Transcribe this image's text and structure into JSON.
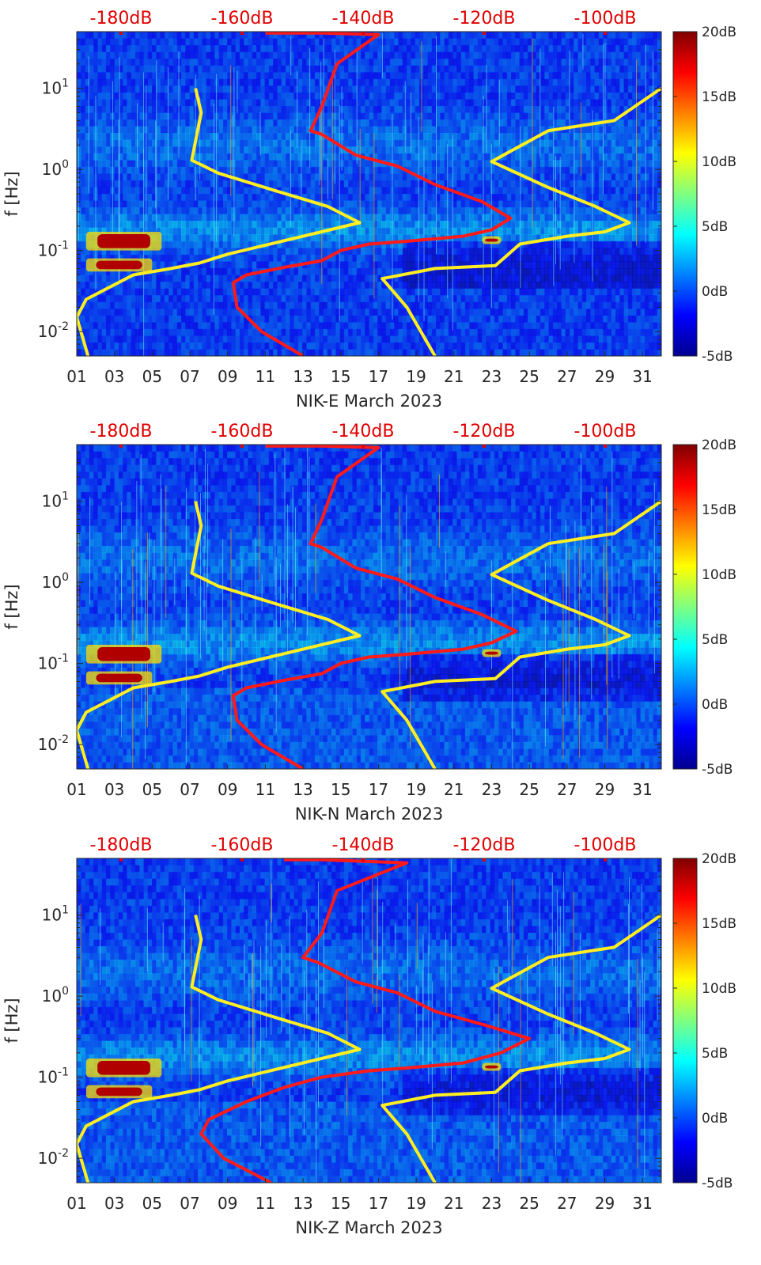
{
  "chart_data": [
    {
      "type": "heatmap",
      "title": "",
      "xlabel": "NIK-E March 2023",
      "ylabel": "f [Hz]",
      "x_ticks": [
        "01",
        "03",
        "05",
        "07",
        "09",
        "11",
        "13",
        "15",
        "17",
        "19",
        "21",
        "23",
        "25",
        "27",
        "29",
        "31"
      ],
      "y_ticks": [
        "10^-2",
        "10^-1",
        "10^0",
        "10^1"
      ],
      "xlim": [
        1,
        32
      ],
      "ylim": [
        0.005,
        50
      ],
      "y_scale": "log",
      "colorbar": {
        "ticks": [
          "20dB",
          "15dB",
          "10dB",
          "5dB",
          "0dB",
          "-5dB"
        ],
        "range": [
          -5,
          20
        ],
        "colormap": "jet"
      },
      "top_axis": {
        "ticks": [
          "-180dB",
          "-160dB",
          "-140dB",
          "-120dB",
          "-100dB"
        ],
        "color": "#e00000"
      },
      "hotspots": [
        {
          "x0": 1.5,
          "x1": 5.5,
          "f0": 0.1,
          "f1": 0.17,
          "level": "high"
        },
        {
          "x0": 1.5,
          "x1": 5,
          "f0": 0.055,
          "f1": 0.08,
          "level": "high"
        },
        {
          "x0": 22.5,
          "x1": 23.5,
          "f0": 0.12,
          "f1": 0.15,
          "level": "high"
        }
      ],
      "series": [
        {
          "color": "#ff1a1a",
          "points": [
            [
              11,
              48
            ],
            [
              14,
              48
            ],
            [
              17,
              46
            ],
            [
              14.8,
              20
            ],
            [
              14,
              6
            ],
            [
              13.4,
              3
            ],
            [
              14,
              2.7
            ],
            [
              15.8,
              1.5
            ],
            [
              18,
              1.1
            ],
            [
              20,
              0.65
            ],
            [
              22.5,
              0.4
            ],
            [
              24,
              0.25
            ],
            [
              23,
              0.18
            ],
            [
              21.5,
              0.15
            ],
            [
              18.5,
              0.13
            ],
            [
              16.5,
              0.12
            ],
            [
              15,
              0.1
            ],
            [
              14,
              0.075
            ],
            [
              12,
              0.062
            ],
            [
              10,
              0.05
            ],
            [
              9.3,
              0.04
            ],
            [
              9.5,
              0.02
            ],
            [
              10.8,
              0.01
            ],
            [
              13,
              0.005
            ]
          ]
        },
        {
          "color": "#ffee22",
          "points": [
            [
              7.3,
              10
            ],
            [
              7.6,
              5
            ],
            [
              7.1,
              1.3
            ],
            [
              8.5,
              0.9
            ],
            [
              11.5,
              0.55
            ],
            [
              14.3,
              0.35
            ],
            [
              16,
              0.22
            ],
            [
              13,
              0.15
            ],
            [
              9,
              0.09
            ],
            [
              7.5,
              0.07
            ],
            [
              6,
              0.06
            ],
            [
              4,
              0.05
            ],
            [
              1.5,
              0.025
            ],
            [
              1,
              0.015
            ],
            [
              1.6,
              0.005
            ]
          ]
        },
        {
          "color": "#ffee22",
          "points": [
            [
              7.3,
              10
            ],
            [
              7.6,
              5
            ],
            [
              7.1,
              1.3
            ],
            [
              8.5,
              0.9
            ],
            [
              11.5,
              0.55
            ],
            [
              14.3,
              0.35
            ],
            [
              16,
              0.22
            ],
            [
              13,
              0.15
            ],
            [
              9,
              0.09
            ],
            [
              7.5,
              0.07
            ],
            [
              6,
              0.06
            ],
            [
              4,
              0.05
            ],
            [
              1.5,
              0.025
            ],
            [
              1,
              0.015
            ],
            [
              1.6,
              0.005
            ]
          ],
          "offset_db": 80,
          "dupe_of": "left"
        },
        {
          "color": "#ffee22",
          "points": [
            [
              32,
              10
            ],
            [
              29.5,
              4
            ],
            [
              26,
              3
            ],
            [
              23,
              1.25
            ],
            [
              26,
              0.6
            ],
            [
              28.5,
              0.35
            ],
            [
              30.3,
              0.22
            ],
            [
              29,
              0.17
            ],
            [
              27,
              0.15
            ],
            [
              24.5,
              0.12
            ],
            [
              23.2,
              0.065
            ],
            [
              20,
              0.06
            ],
            [
              17.2,
              0.045
            ],
            [
              18.5,
              0.02
            ],
            [
              20,
              0.005
            ]
          ]
        }
      ]
    },
    {
      "type": "heatmap",
      "title": "",
      "xlabel": "NIK-N March 2023",
      "ylabel": "f [Hz]",
      "x_ticks": [
        "01",
        "03",
        "05",
        "07",
        "09",
        "11",
        "13",
        "15",
        "17",
        "19",
        "21",
        "23",
        "25",
        "27",
        "29",
        "31"
      ],
      "y_ticks": [
        "10^-2",
        "10^-1",
        "10^0",
        "10^1"
      ],
      "xlim": [
        1,
        32
      ],
      "ylim": [
        0.005,
        50
      ],
      "y_scale": "log",
      "colorbar": {
        "ticks": [
          "20dB",
          "15dB",
          "10dB",
          "5dB",
          "0dB",
          "-5dB"
        ],
        "range": [
          -5,
          20
        ],
        "colormap": "jet"
      },
      "top_axis": {
        "ticks": [
          "-180dB",
          "-160dB",
          "-140dB",
          "-120dB",
          "-100dB"
        ],
        "color": "#e00000"
      },
      "hotspots": [
        {
          "x0": 1.5,
          "x1": 5.5,
          "f0": 0.1,
          "f1": 0.17,
          "level": "high"
        },
        {
          "x0": 1.5,
          "x1": 5,
          "f0": 0.055,
          "f1": 0.08,
          "level": "high"
        },
        {
          "x0": 22.5,
          "x1": 23.5,
          "f0": 0.12,
          "f1": 0.15,
          "level": "high"
        }
      ],
      "series": [
        {
          "color": "#ff1a1a",
          "points": [
            [
              11,
              48
            ],
            [
              14,
              48
            ],
            [
              17,
              46
            ],
            [
              14.8,
              20
            ],
            [
              14,
              6
            ],
            [
              13.4,
              3
            ],
            [
              14,
              2.7
            ],
            [
              15.8,
              1.5
            ],
            [
              18,
              1.1
            ],
            [
              20,
              0.65
            ],
            [
              22.5,
              0.4
            ],
            [
              24.3,
              0.25
            ],
            [
              23,
              0.18
            ],
            [
              21.5,
              0.15
            ],
            [
              18.5,
              0.13
            ],
            [
              16.5,
              0.12
            ],
            [
              15,
              0.1
            ],
            [
              14,
              0.075
            ],
            [
              12,
              0.062
            ],
            [
              10,
              0.05
            ],
            [
              9.3,
              0.04
            ],
            [
              9.5,
              0.02
            ],
            [
              10.8,
              0.01
            ],
            [
              13,
              0.005
            ]
          ]
        },
        {
          "color": "#ffee22",
          "points": [
            [
              7.3,
              10
            ],
            [
              7.6,
              5
            ],
            [
              7.1,
              1.3
            ],
            [
              8.5,
              0.9
            ],
            [
              11.5,
              0.55
            ],
            [
              14.3,
              0.35
            ],
            [
              16,
              0.22
            ],
            [
              13,
              0.15
            ],
            [
              9,
              0.09
            ],
            [
              7.5,
              0.07
            ],
            [
              6,
              0.06
            ],
            [
              4,
              0.05
            ],
            [
              1.5,
              0.025
            ],
            [
              1,
              0.015
            ],
            [
              1.6,
              0.005
            ]
          ]
        },
        {
          "color": "#ffee22",
          "points": [
            [
              32,
              10
            ],
            [
              29.5,
              4
            ],
            [
              26,
              3
            ],
            [
              23,
              1.25
            ],
            [
              26,
              0.6
            ],
            [
              28.5,
              0.35
            ],
            [
              30.3,
              0.22
            ],
            [
              29,
              0.17
            ],
            [
              27,
              0.15
            ],
            [
              24.5,
              0.12
            ],
            [
              23.2,
              0.065
            ],
            [
              20,
              0.06
            ],
            [
              17.2,
              0.045
            ],
            [
              18.5,
              0.02
            ],
            [
              20,
              0.005
            ]
          ]
        }
      ]
    },
    {
      "type": "heatmap",
      "title": "",
      "xlabel": "NIK-Z March 2023",
      "ylabel": "f [Hz]",
      "x_ticks": [
        "01",
        "03",
        "05",
        "07",
        "09",
        "11",
        "13",
        "15",
        "17",
        "19",
        "21",
        "23",
        "25",
        "27",
        "29",
        "31"
      ],
      "y_ticks": [
        "10^-2",
        "10^-1",
        "10^0",
        "10^1"
      ],
      "xlim": [
        1,
        32
      ],
      "ylim": [
        0.005,
        50
      ],
      "y_scale": "log",
      "colorbar": {
        "ticks": [
          "20dB",
          "15dB",
          "10dB",
          "5dB",
          "0dB",
          "-5dB"
        ],
        "range": [
          -5,
          20
        ],
        "colormap": "jet"
      },
      "top_axis": {
        "ticks": [
          "-180dB",
          "-160dB",
          "-140dB",
          "-120dB",
          "-100dB"
        ],
        "color": "#e00000"
      },
      "hotspots": [
        {
          "x0": 1.5,
          "x1": 5.5,
          "f0": 0.1,
          "f1": 0.17,
          "level": "high"
        },
        {
          "x0": 1.5,
          "x1": 5,
          "f0": 0.055,
          "f1": 0.08,
          "level": "high"
        },
        {
          "x0": 22.5,
          "x1": 23.5,
          "f0": 0.12,
          "f1": 0.15,
          "level": "high"
        }
      ],
      "series": [
        {
          "color": "#ff1a1a",
          "points": [
            [
              12,
              48
            ],
            [
              14,
              48
            ],
            [
              18.5,
              44
            ],
            [
              14.8,
              20
            ],
            [
              14,
              6
            ],
            [
              13,
              3
            ],
            [
              13.8,
              2.6
            ],
            [
              15.8,
              1.5
            ],
            [
              18,
              1.1
            ],
            [
              20,
              0.65
            ],
            [
              22.5,
              0.45
            ],
            [
              25,
              0.3
            ],
            [
              23.5,
              0.2
            ],
            [
              21.5,
              0.15
            ],
            [
              18.5,
              0.13
            ],
            [
              16.5,
              0.12
            ],
            [
              14,
              0.1
            ],
            [
              12,
              0.075
            ],
            [
              10,
              0.05
            ],
            [
              8,
              0.03
            ],
            [
              7.6,
              0.02
            ],
            [
              8.8,
              0.01
            ],
            [
              11.3,
              0.005
            ]
          ]
        },
        {
          "color": "#ffee22",
          "points": [
            [
              7.3,
              10
            ],
            [
              7.6,
              5
            ],
            [
              7.1,
              1.3
            ],
            [
              8.5,
              0.9
            ],
            [
              11.5,
              0.55
            ],
            [
              14.3,
              0.35
            ],
            [
              16,
              0.22
            ],
            [
              13,
              0.15
            ],
            [
              9,
              0.09
            ],
            [
              7.5,
              0.07
            ],
            [
              6,
              0.06
            ],
            [
              4,
              0.05
            ],
            [
              1.5,
              0.025
            ],
            [
              1,
              0.015
            ],
            [
              1.6,
              0.005
            ]
          ]
        },
        {
          "color": "#ffee22",
          "points": [
            [
              32,
              10
            ],
            [
              29.5,
              4
            ],
            [
              26,
              3
            ],
            [
              23,
              1.25
            ],
            [
              26,
              0.6
            ],
            [
              28.5,
              0.35
            ],
            [
              30.3,
              0.22
            ],
            [
              29,
              0.17
            ],
            [
              27,
              0.15
            ],
            [
              24.5,
              0.12
            ],
            [
              23.2,
              0.065
            ],
            [
              20,
              0.06
            ],
            [
              17.2,
              0.045
            ],
            [
              18.5,
              0.02
            ],
            [
              20,
              0.005
            ]
          ]
        }
      ]
    }
  ]
}
